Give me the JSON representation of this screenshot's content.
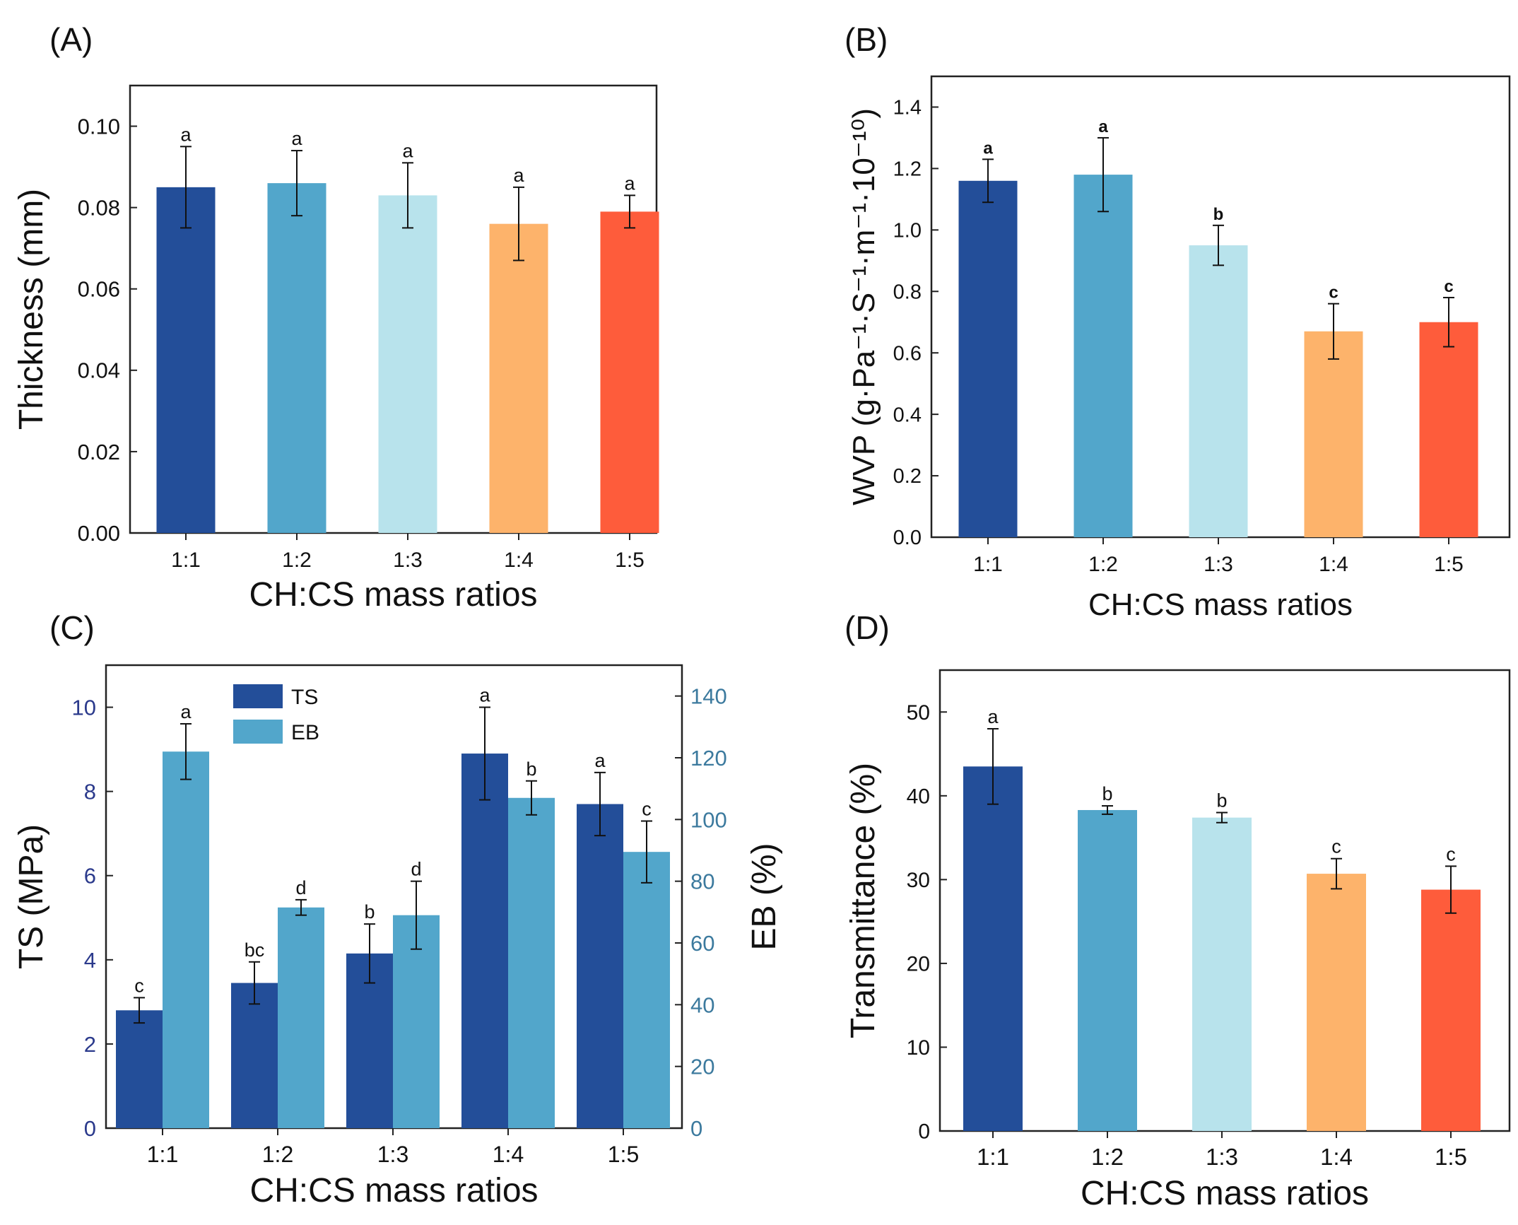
{
  "colors": {
    "c1": "#234E99",
    "c2": "#52A6CB",
    "c3": "#B8E3EC",
    "c4": "#FDB36B",
    "c5": "#FE5C3B",
    "ts": "#234E99",
    "eb": "#52A6CB",
    "axis_left_c": "#2B3A8C",
    "axis_right_c": "#3C7A9E"
  },
  "chart_data": [
    {
      "id": "A",
      "type": "bar",
      "panel_label": "(A)",
      "categories": [
        "1:1",
        "1:2",
        "1:3",
        "1:4",
        "1:5"
      ],
      "values": [
        0.085,
        0.086,
        0.083,
        0.076,
        0.079
      ],
      "errors": [
        0.01,
        0.008,
        0.008,
        0.009,
        0.004
      ],
      "letters": [
        "a",
        "a",
        "a",
        "a",
        "a"
      ],
      "xlabel": "CH:CS mass ratios",
      "ylabel": "Thickness (mm)",
      "ylim": [
        0,
        0.11
      ],
      "yticks": [
        0.0,
        0.02,
        0.04,
        0.06,
        0.08,
        0.1
      ],
      "ytick_labels": [
        "0.00",
        "0.02",
        "0.04",
        "0.06",
        "0.08",
        "0.10"
      ]
    },
    {
      "id": "B",
      "type": "bar",
      "panel_label": "(B)",
      "categories": [
        "1:1",
        "1:2",
        "1:3",
        "1:4",
        "1:5"
      ],
      "values": [
        1.16,
        1.18,
        0.95,
        0.67,
        0.7
      ],
      "errors": [
        0.07,
        0.12,
        0.065,
        0.09,
        0.08
      ],
      "letters": [
        "a",
        "a",
        "b",
        "c",
        "c"
      ],
      "xlabel": "CH:CS mass ratios",
      "ylabel": "WVP (g·Pa⁻¹·S⁻¹·m⁻¹·10⁻¹⁰)",
      "ylim": [
        0,
        1.5
      ],
      "yticks": [
        0.0,
        0.2,
        0.4,
        0.6,
        0.8,
        1.0,
        1.2,
        1.4
      ],
      "ytick_labels": [
        "0.0",
        "0.2",
        "0.4",
        "0.6",
        "0.8",
        "1.0",
        "1.2",
        "1.4"
      ]
    },
    {
      "id": "C",
      "type": "bar",
      "panel_label": "(C)",
      "categories": [
        "1:1",
        "1:2",
        "1:3",
        "1:4",
        "1:5"
      ],
      "series": [
        {
          "name": "TS",
          "axis": "left",
          "values": [
            2.8,
            3.45,
            4.15,
            8.9,
            7.7
          ],
          "errors": [
            0.3,
            0.5,
            0.7,
            1.1,
            0.75
          ],
          "letters": [
            "c",
            "bc",
            "b",
            "a",
            "a"
          ]
        },
        {
          "name": "EB",
          "axis": "right",
          "values": [
            122,
            71.5,
            69,
            107,
            89.5
          ],
          "errors": [
            9,
            2.5,
            11,
            5.5,
            10
          ],
          "letters": [
            "a",
            "d",
            "d",
            "b",
            "c"
          ]
        }
      ],
      "xlabel": "CH:CS mass ratios",
      "ylabel": "TS (MPa)",
      "ylabel_right": "EB (%)",
      "ylim": [
        0,
        11
      ],
      "ylim_right": [
        0,
        150
      ],
      "yticks": [
        0,
        2,
        4,
        6,
        8,
        10
      ],
      "ytick_labels": [
        "0",
        "2",
        "4",
        "6",
        "8",
        "10"
      ],
      "yticks_right": [
        0,
        20,
        40,
        60,
        80,
        100,
        120,
        140
      ],
      "ytick_labels_right": [
        "0",
        "20",
        "40",
        "60",
        "80",
        "100",
        "120",
        "140"
      ],
      "legend": [
        "TS",
        "EB"
      ],
      "legend_position": "top-left"
    },
    {
      "id": "D",
      "type": "bar",
      "panel_label": "(D)",
      "categories": [
        "1:1",
        "1:2",
        "1:3",
        "1:4",
        "1:5"
      ],
      "values": [
        43.5,
        38.3,
        37.4,
        30.7,
        28.8
      ],
      "errors": [
        4.5,
        0.5,
        0.6,
        1.8,
        2.8
      ],
      "letters": [
        "a",
        "b",
        "b",
        "c",
        "c"
      ],
      "xlabel": "CH:CS mass ratios",
      "ylabel": "Transmittance (%)",
      "ylim": [
        0,
        55
      ],
      "yticks": [
        0,
        10,
        20,
        30,
        40,
        50
      ],
      "ytick_labels": [
        "0",
        "10",
        "20",
        "30",
        "40",
        "50"
      ]
    }
  ]
}
